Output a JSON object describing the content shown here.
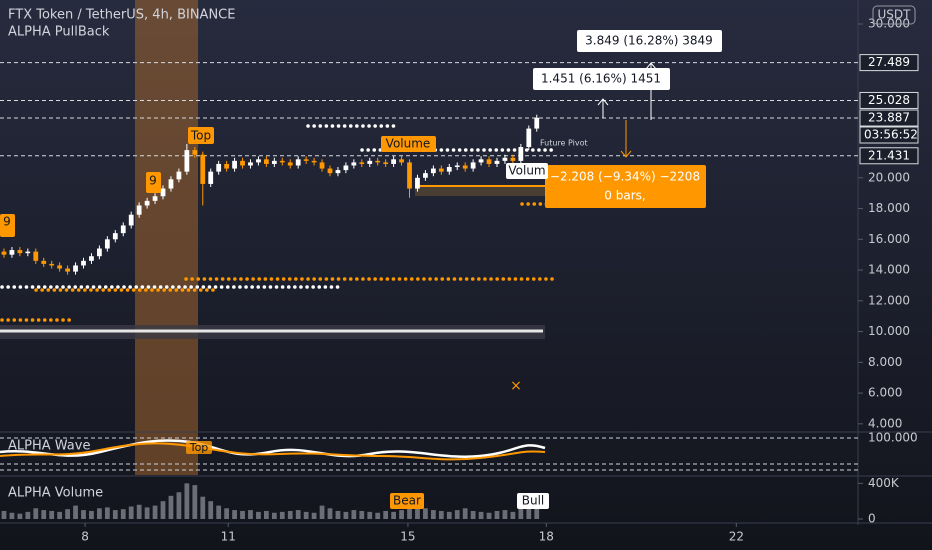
{
  "header": {
    "symbol": "FTX Token / TetherUS, 4h, BINANCE",
    "indicator": "ALPHA PullBack",
    "currency": "USDT"
  },
  "measures": {
    "up_long": "3.849 (16.28%) 3849",
    "up_short": "1.451 (6.16%) 1451",
    "down_line1": "−2.208 (−9.34%) −2208",
    "down_line2": "0 bars,"
  },
  "markers": {
    "top_1": "Top",
    "top_2": "Top",
    "nine_1": "9",
    "nine_2": "9",
    "volume_1": "Volume",
    "volume_2": "Volum",
    "pivot": "Future Pivot",
    "bear": "Bear",
    "bull": "Bull"
  },
  "panes": {
    "wave": "ALPHA Wave",
    "volume": "ALPHA Volume",
    "wave_tick": "100.000"
  },
  "countdown": "03:56:52",
  "chart_data": {
    "type": "candlestick",
    "xlim": [
      -0.5,
      107.4
    ],
    "xticks": [
      {
        "value": 10.2,
        "label": "8"
      },
      {
        "value": 28.2,
        "label": "11"
      },
      {
        "value": 50.8,
        "label": "15"
      },
      {
        "value": 68.2,
        "label": "18"
      },
      {
        "value": 92.1,
        "label": "22"
      }
    ],
    "ylim": [
      3.6,
      31.56
    ],
    "yticks": [
      {
        "value": 4,
        "label": "4.000"
      },
      {
        "value": 6,
        "label": "6.000"
      },
      {
        "value": 8,
        "label": "8.000"
      },
      {
        "value": 10,
        "label": "10.000"
      },
      {
        "value": 12,
        "label": "12.000"
      },
      {
        "value": 14,
        "label": "14.000"
      },
      {
        "value": 16,
        "label": "16.000"
      },
      {
        "value": 18,
        "label": "18.000"
      },
      {
        "value": 20,
        "label": "20.000"
      },
      {
        "value": 30,
        "label": "30.000"
      }
    ],
    "price_lines": [
      {
        "value": 27.489,
        "label": "27.489"
      },
      {
        "value": 25.028,
        "label": "25.028"
      },
      {
        "value": 23.887,
        "label": "23.887"
      },
      {
        "value": 21.431,
        "label": "21.431"
      }
    ],
    "up_color": "#ffffff",
    "down_color": "#ff9800",
    "open": [
      15.2,
      15.0,
      15.3,
      15.1,
      15.2,
      14.6,
      14.4,
      14.3,
      14.1,
      13.9,
      14.3,
      14.6,
      14.9,
      15.4,
      16.0,
      16.4,
      16.9,
      17.6,
      18.2,
      18.5,
      18.8,
      19.3,
      19.9,
      20.4,
      21.8,
      21.5,
      19.6,
      20.4,
      20.9,
      20.6,
      21.1,
      20.8,
      21.0,
      21.2,
      20.9,
      21.1,
      21.0,
      20.8,
      21.2,
      21.1,
      21.0,
      20.6,
      20.3,
      20.5,
      20.8,
      21.0,
      20.9,
      21.1,
      21.0,
      20.9,
      21.2,
      21.0,
      19.3,
      20.0,
      20.3,
      20.6,
      20.4,
      20.7,
      20.8,
      20.6,
      21.0,
      21.2,
      20.9,
      21.1,
      21.3,
      21.1,
      22.0,
      23.2
    ],
    "high": [
      15.4,
      15.5,
      15.5,
      15.4,
      15.4,
      14.8,
      14.6,
      14.5,
      14.3,
      14.5,
      14.8,
      15.1,
      15.6,
      16.2,
      16.6,
      17.1,
      17.8,
      18.4,
      18.7,
      19.0,
      19.5,
      20.1,
      20.6,
      22.2,
      22.0,
      21.7,
      20.6,
      21.1,
      21.1,
      21.3,
      21.3,
      21.2,
      21.4,
      21.4,
      21.3,
      21.3,
      21.2,
      21.4,
      21.4,
      21.3,
      21.2,
      20.8,
      20.7,
      21.0,
      21.2,
      21.2,
      21.3,
      21.3,
      21.2,
      21.4,
      21.4,
      21.2,
      20.2,
      20.5,
      20.8,
      20.8,
      20.9,
      21.0,
      21.0,
      21.2,
      21.4,
      21.4,
      21.3,
      21.5,
      21.5,
      22.2,
      23.4,
      24.1
    ],
    "low": [
      14.8,
      14.8,
      14.9,
      14.9,
      14.4,
      14.2,
      14.1,
      13.9,
      13.7,
      13.7,
      14.1,
      14.4,
      14.7,
      15.2,
      15.8,
      16.2,
      16.7,
      17.4,
      18.0,
      18.3,
      18.6,
      19.1,
      19.7,
      20.2,
      21.3,
      18.2,
      19.4,
      20.2,
      20.4,
      20.4,
      20.6,
      20.6,
      20.8,
      20.7,
      20.7,
      20.8,
      20.6,
      20.6,
      20.9,
      20.8,
      20.4,
      20.1,
      20.1,
      20.3,
      20.6,
      20.7,
      20.7,
      20.8,
      20.7,
      20.7,
      20.8,
      18.7,
      19.1,
      19.8,
      20.1,
      20.2,
      20.2,
      20.5,
      20.4,
      20.4,
      20.8,
      20.7,
      20.7,
      20.9,
      20.9,
      20.9,
      21.8,
      23.0
    ],
    "close": [
      15.0,
      15.3,
      15.1,
      15.2,
      14.6,
      14.4,
      14.3,
      14.1,
      13.9,
      14.3,
      14.6,
      14.9,
      15.4,
      16.0,
      16.4,
      16.9,
      17.6,
      18.2,
      18.5,
      18.8,
      19.3,
      19.9,
      20.4,
      21.8,
      21.5,
      19.6,
      20.4,
      20.9,
      20.6,
      21.1,
      20.8,
      21.0,
      21.2,
      20.9,
      21.1,
      21.0,
      20.8,
      21.2,
      21.1,
      21.0,
      20.6,
      20.3,
      20.5,
      20.8,
      21.0,
      20.9,
      21.1,
      21.0,
      20.9,
      21.2,
      21.0,
      19.3,
      20.0,
      20.3,
      20.6,
      20.4,
      20.7,
      20.8,
      20.6,
      21.0,
      21.2,
      20.9,
      21.1,
      21.3,
      21.1,
      22.0,
      23.2,
      23.9
    ],
    "volume": [
      90,
      70,
      60,
      80,
      120,
      100,
      90,
      80,
      110,
      150,
      100,
      90,
      120,
      130,
      100,
      110,
      140,
      160,
      130,
      150,
      200,
      260,
      300,
      400,
      380,
      250,
      200,
      150,
      120,
      100,
      90,
      100,
      80,
      90,
      70,
      80,
      90,
      100,
      80,
      70,
      150,
      120,
      90,
      80,
      100,
      90,
      80,
      70,
      90,
      80,
      100,
      250,
      180,
      120,
      100,
      90,
      80,
      100,
      120,
      90,
      80,
      70,
      90,
      100,
      80,
      150,
      200,
      170
    ],
    "volume_color": "#6b6e78",
    "volume_ylim": [
      0,
      460
    ],
    "volume_yticks": [
      {
        "value": 400,
        "label": "400K"
      },
      0
    ]
  }
}
